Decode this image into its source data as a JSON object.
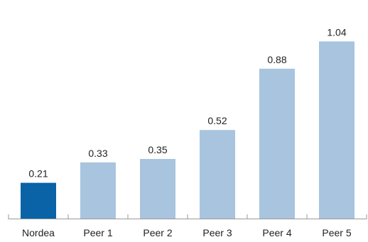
{
  "chart_data": {
    "type": "bar",
    "title": "",
    "xlabel": "",
    "ylabel": "",
    "categories": [
      "Nordea",
      "Peer 1",
      "Peer 2",
      "Peer 3",
      "Peer 4",
      "Peer 5"
    ],
    "values": [
      0.21,
      0.33,
      0.35,
      0.52,
      0.88,
      1.04
    ],
    "value_labels": [
      "0.21",
      "0.33",
      "0.35",
      "0.52",
      "0.88",
      "1.04"
    ],
    "ylim": [
      0,
      1.1
    ],
    "highlight_index": 0,
    "colors": {
      "highlight": "#0a62a7",
      "default": "#a8c4df",
      "axis": "#9a9a9a",
      "text": "#222222"
    },
    "grid": false,
    "legend": "none"
  }
}
